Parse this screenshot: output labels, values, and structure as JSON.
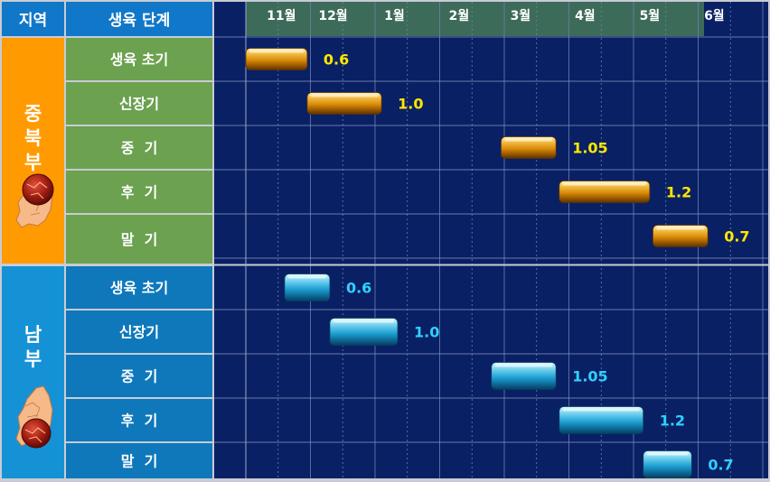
{
  "header": {
    "region_label": "지역",
    "stage_label": "생육 단계"
  },
  "regions": [
    {
      "name": "중북부",
      "chars": [
        "중",
        "북",
        "부"
      ]
    },
    {
      "name": "남부",
      "chars": [
        "남",
        "부"
      ]
    }
  ],
  "colors": {
    "header_blue": "#1177c8",
    "timeline_header": "#3d6b5a",
    "chart_bg": "#0a2064",
    "region1": "#ff9a00",
    "stage1": "#6ba14f",
    "region2": "#1592d6",
    "stage2": "#0e78bb",
    "gold_bar": "#e39a12",
    "gold_label": "#ffe800",
    "cyan_bar": "#27a8d8",
    "cyan_label": "#2ed2ff"
  },
  "icons": [
    "korea-map-icon",
    "korea-map-icon"
  ],
  "chart_data": {
    "type": "bar",
    "orientation": "horizontal-gantt",
    "x_axis": {
      "ticks": [
        "11월",
        "12월",
        "1월",
        "2월",
        "3월",
        "4월",
        "5월",
        "6월"
      ],
      "range_months": [
        0,
        8.3
      ]
    },
    "grid": true,
    "groups": [
      {
        "region": "중북부",
        "style": "gold",
        "stages": [
          {
            "stage": "생육 초기",
            "start": 0.0,
            "end": 0.95,
            "value_label": "0.6"
          },
          {
            "stage": "신장기",
            "start": 0.95,
            "end": 2.1,
            "value_label": "1.0"
          },
          {
            "stage": "중  기",
            "start": 3.95,
            "end": 4.8,
            "value_label": "1.05"
          },
          {
            "stage": "후  기",
            "start": 4.85,
            "end": 6.25,
            "value_label": "1.2"
          },
          {
            "stage": "말  기",
            "start": 6.3,
            "end": 7.15,
            "value_label": "0.7"
          }
        ]
      },
      {
        "region": "남부",
        "style": "cyan",
        "stages": [
          {
            "stage": "생육 초기",
            "start": 0.6,
            "end": 1.3,
            "value_label": "0.6"
          },
          {
            "stage": "신장기",
            "start": 1.3,
            "end": 2.35,
            "value_label": "1.0"
          },
          {
            "stage": "중  기",
            "start": 3.8,
            "end": 4.8,
            "value_label": "1.05"
          },
          {
            "stage": "후  기",
            "start": 4.85,
            "end": 6.15,
            "value_label": "1.2"
          },
          {
            "stage": "말  기",
            "start": 6.15,
            "end": 6.9,
            "value_label": "0.7"
          }
        ]
      }
    ]
  }
}
